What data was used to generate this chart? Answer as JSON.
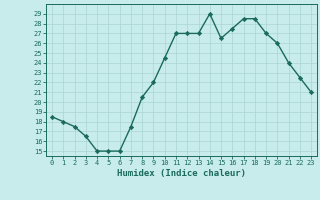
{
  "x": [
    0,
    1,
    2,
    3,
    4,
    5,
    6,
    7,
    8,
    9,
    10,
    11,
    12,
    13,
    14,
    15,
    16,
    17,
    18,
    19,
    20,
    21,
    22,
    23
  ],
  "y": [
    18.5,
    18.0,
    17.5,
    16.5,
    15.0,
    15.0,
    15.0,
    17.5,
    20.5,
    22.0,
    24.5,
    27.0,
    27.0,
    27.0,
    29.0,
    26.5,
    27.5,
    28.5,
    28.5,
    27.0,
    26.0,
    24.0,
    22.5,
    21.0
  ],
  "xlabel": "Humidex (Indice chaleur)",
  "line_color": "#1a6b5a",
  "bg_color": "#c8ecec",
  "grid_color": "#aad4d4",
  "text_color": "#1a6b5a",
  "ylim": [
    14.5,
    30.0
  ],
  "xlim": [
    -0.5,
    23.5
  ],
  "yticks": [
    15,
    16,
    17,
    18,
    19,
    20,
    21,
    22,
    23,
    24,
    25,
    26,
    27,
    28,
    29
  ],
  "xticks": [
    0,
    1,
    2,
    3,
    4,
    5,
    6,
    7,
    8,
    9,
    10,
    11,
    12,
    13,
    14,
    15,
    16,
    17,
    18,
    19,
    20,
    21,
    22,
    23
  ],
  "marker_size": 2.2,
  "line_width": 1.0
}
